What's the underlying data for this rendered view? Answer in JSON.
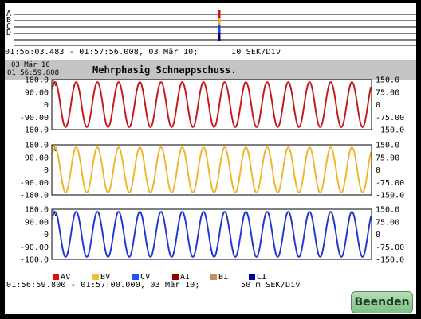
{
  "overview": {
    "channels": [
      "A",
      "B",
      "C",
      "D"
    ],
    "range_label": "01:56:03.483 - 01:57:56.008, 03 Mär 10;",
    "scale_label": "10 SEK/Div"
  },
  "header": {
    "date": "03 Mär 10",
    "time": "01:56:59.808",
    "title": "Mehrphasig Schnappschuss."
  },
  "plots": [
    {
      "left_ticks": [
        "180.0",
        "90.00",
        "0",
        "-90.00",
        "-180.0"
      ],
      "right_ticks": [
        "150.0",
        "75.00",
        "0",
        "-75.00",
        "-150.0"
      ],
      "unit": "V",
      "color": "#c81414",
      "cycles": 15
    },
    {
      "left_ticks": [
        "180.0",
        "90.00",
        "0",
        "-90.00",
        "-180.0"
      ],
      "right_ticks": [
        "150.0",
        "75.00",
        "0",
        "-75.00",
        "-150.0"
      ],
      "unit": "V",
      "color": "#f0b428",
      "cycles": 15
    },
    {
      "left_ticks": [
        "180.0",
        "90.00",
        "0",
        "-90.00",
        "-180.0"
      ],
      "right_ticks": [
        "150.0",
        "75.00",
        "0",
        "-75.00",
        "-150.0"
      ],
      "unit": "V",
      "color": "#1e32d2",
      "cycles": 15
    }
  ],
  "legend": [
    {
      "label": "AV",
      "color": "#e01010"
    },
    {
      "label": "BV",
      "color": "#f0c030"
    },
    {
      "label": "CV",
      "color": "#2050ff"
    },
    {
      "label": "AI",
      "color": "#900000"
    },
    {
      "label": "BI",
      "color": "#c09060"
    },
    {
      "label": "CI",
      "color": "#0000a0"
    }
  ],
  "footer": {
    "range_label": "01:56:59.800 - 01:57:00.000, 03 Mär 10;",
    "scale_label": "50 m SEK/Div"
  },
  "buttons": {
    "finish": "Beenden"
  }
}
